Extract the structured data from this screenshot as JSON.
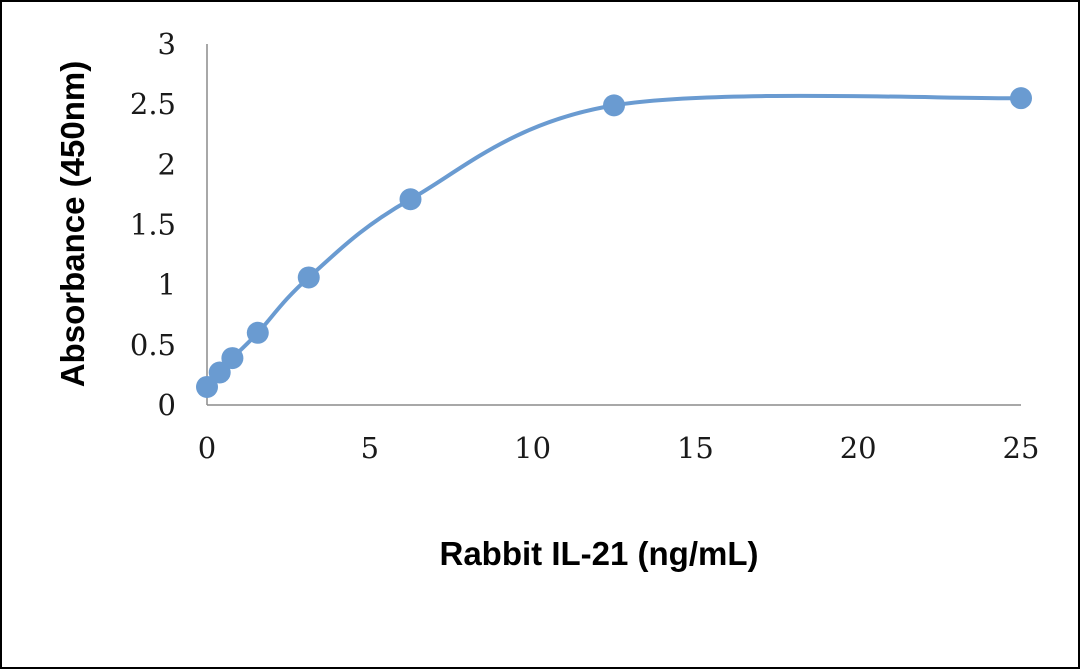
{
  "chart_data": {
    "type": "line",
    "title": "",
    "xlabel": "Rabbit IL-21 (ng/mL)",
    "ylabel": "Absorbance (450nm)",
    "xlim": [
      0,
      25
    ],
    "ylim": [
      0,
      3
    ],
    "x_ticks": [
      "0",
      "5",
      "10",
      "15",
      "20",
      "25"
    ],
    "y_ticks": [
      "0",
      "0.5",
      "1",
      "1.5",
      "2",
      "2.5",
      "3"
    ],
    "grid": false,
    "legend": "none",
    "smooth": true,
    "series": [
      {
        "color": "#6a9bd1",
        "points": [
          {
            "x": 0,
            "y": 0.15
          },
          {
            "x": 0.39,
            "y": 0.27
          },
          {
            "x": 0.78,
            "y": 0.39
          },
          {
            "x": 1.56,
            "y": 0.6
          },
          {
            "x": 3.125,
            "y": 1.06
          },
          {
            "x": 6.25,
            "y": 1.71
          },
          {
            "x": 12.5,
            "y": 2.49
          },
          {
            "x": 25,
            "y": 2.55
          }
        ]
      }
    ]
  }
}
